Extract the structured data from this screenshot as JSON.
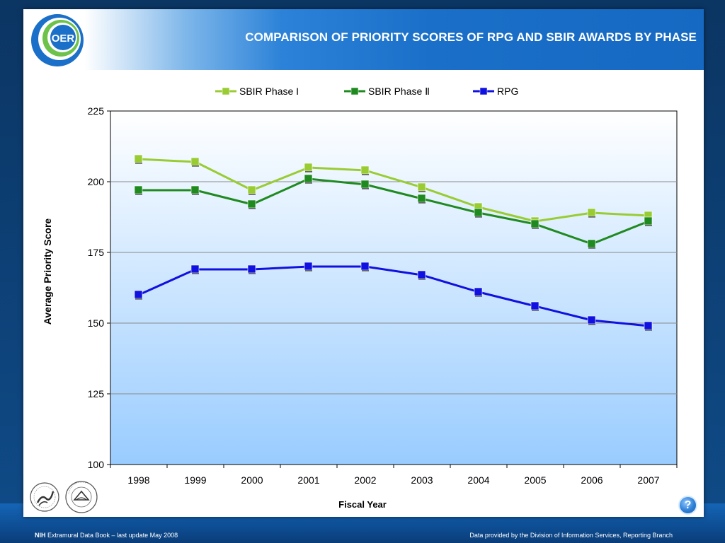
{
  "slide": {
    "title": "COMPARISON OF PRIORITY SCORES OF RPG AND SBIR AWARDS BY PHASE",
    "logo_text": "OER",
    "help_label": "?"
  },
  "footer": {
    "org": "NIH",
    "left_text": "Extramural Data Book – last update May 2008",
    "right_text": "Data provided by the Division of Information Services, Reporting Branch"
  },
  "chart_data": {
    "type": "line",
    "xlabel": "Fiscal Year",
    "ylabel": "Average Priority Score",
    "ylim": [
      100,
      225
    ],
    "yticks": [
      100,
      125,
      150,
      175,
      200,
      225
    ],
    "categories": [
      "1998",
      "1999",
      "2000",
      "2001",
      "2002",
      "2003",
      "2004",
      "2005",
      "2006",
      "2007"
    ],
    "grid": true,
    "legend_position": "top",
    "series": [
      {
        "name": "SBIR Phase I",
        "color": "#99cc33",
        "values": [
          208,
          207,
          197,
          205,
          204,
          198,
          191,
          186,
          189,
          188
        ]
      },
      {
        "name": "SBIR Phase Ⅱ",
        "color": "#1f8a1f",
        "values": [
          197,
          197,
          192,
          201,
          199,
          194,
          189,
          185,
          178,
          186
        ]
      },
      {
        "name": "RPG",
        "color": "#1010e0",
        "values": [
          160,
          169,
          169,
          170,
          170,
          167,
          161,
          156,
          151,
          149
        ]
      }
    ]
  }
}
